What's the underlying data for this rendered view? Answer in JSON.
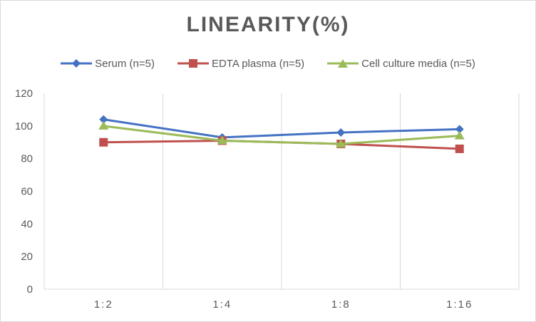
{
  "chart_data": {
    "type": "line",
    "title": "LINEARITY(%)",
    "categories": [
      "1:2",
      "1:4",
      "1:8",
      "1:16"
    ],
    "ylim": [
      0,
      120
    ],
    "yticks": [
      0,
      20,
      40,
      60,
      80,
      100,
      120
    ],
    "grid": "vertical",
    "legend_position": "top",
    "series": [
      {
        "name": "Serum (n=5)",
        "values": [
          104,
          93,
          96,
          98
        ],
        "color": "#4472c4",
        "marker": "diamond"
      },
      {
        "name": "EDTA plasma (n=5)",
        "values": [
          90,
          91,
          89,
          86
        ],
        "color": "#c0504d",
        "marker": "square"
      },
      {
        "name": "Cell culture media (n=5)",
        "values": [
          100,
          91,
          89,
          94
        ],
        "color": "#9bbb59",
        "marker": "triangle"
      }
    ]
  }
}
